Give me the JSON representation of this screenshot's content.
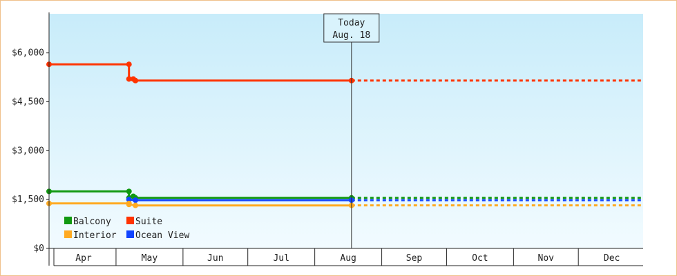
{
  "chart_data": {
    "type": "line",
    "title": "",
    "xlabel": "",
    "ylabel": "",
    "ylim": [
      0,
      7200
    ],
    "y_ticks": [
      {
        "value": 0,
        "label": "$0"
      },
      {
        "value": 1500,
        "label": "$1,500"
      },
      {
        "value": 3000,
        "label": "$3,000"
      },
      {
        "value": 4500,
        "label": "$4,500"
      },
      {
        "value": 6000,
        "label": "$6,000"
      }
    ],
    "x_domain": [
      "2000-03-31",
      "2000-12-31"
    ],
    "months": [
      {
        "label": "Apr",
        "start": "2000-04-01",
        "end": "2000-05-01"
      },
      {
        "label": "May",
        "start": "2000-05-01",
        "end": "2000-06-01"
      },
      {
        "label": "Jun",
        "start": "2000-06-01",
        "end": "2000-07-01"
      },
      {
        "label": "Jul",
        "start": "2000-07-01",
        "end": "2000-08-01"
      },
      {
        "label": "Aug",
        "start": "2000-08-01",
        "end": "2000-09-01"
      },
      {
        "label": "Sep",
        "start": "2000-09-01",
        "end": "2000-10-01"
      },
      {
        "label": "Oct",
        "start": "2000-10-01",
        "end": "2000-11-01"
      },
      {
        "label": "Nov",
        "start": "2000-11-01",
        "end": "2000-12-01"
      },
      {
        "label": "Dec",
        "start": "2000-12-01",
        "end": "2001-01-01"
      }
    ],
    "today": {
      "date": "2000-08-18",
      "label_line1": "Today",
      "label_line2": "Aug. 18"
    },
    "forecast_end": "2000-12-31",
    "grid": false,
    "legend_position": "bottom-left",
    "series": [
      {
        "name": "Suite",
        "color": "#ff3300",
        "points": [
          [
            "2000-03-31",
            5650
          ],
          [
            "2000-05-07",
            5650
          ],
          [
            "2000-05-07",
            5200
          ],
          [
            "2000-05-09",
            5200
          ],
          [
            "2000-05-10",
            5150
          ],
          [
            "2000-08-18",
            5150
          ]
        ],
        "forecast": 5150
      },
      {
        "name": "Balcony",
        "color": "#119911",
        "points": [
          [
            "2000-03-31",
            1750
          ],
          [
            "2000-05-07",
            1750
          ],
          [
            "2000-05-07",
            1550
          ],
          [
            "2000-05-09",
            1600
          ],
          [
            "2000-05-10",
            1550
          ],
          [
            "2000-08-18",
            1550
          ]
        ],
        "forecast": 1550
      },
      {
        "name": "Ocean View",
        "color": "#1144ff",
        "points": [
          [
            "2000-05-07",
            1500
          ],
          [
            "2000-05-10",
            1480
          ],
          [
            "2000-08-18",
            1480
          ]
        ],
        "forecast": 1480
      },
      {
        "name": "Interior",
        "color": "#ffaa22",
        "points": [
          [
            "2000-03-31",
            1380
          ],
          [
            "2000-05-07",
            1380
          ],
          [
            "2000-05-07",
            1350
          ],
          [
            "2000-05-10",
            1320
          ],
          [
            "2000-08-18",
            1320
          ]
        ],
        "forecast": 1320
      }
    ]
  }
}
